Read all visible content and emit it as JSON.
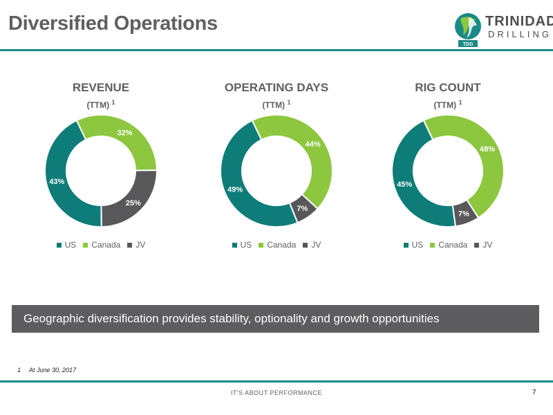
{
  "header": {
    "title": "Diversified Operations"
  },
  "logo": {
    "line1": "TRINIDAD",
    "line2": "DRILLING",
    "badge": "TDG"
  },
  "colors": {
    "US": "#0e7c78",
    "Canada": "#8dc63f",
    "JV": "#58585a",
    "accent": "#1a8a86"
  },
  "chart_data": [
    {
      "type": "pie",
      "title": "REVENUE",
      "subtitle": "(TTM)",
      "footnote_ref": "1",
      "labels": [
        "US",
        "Canada",
        "JV"
      ],
      "values": [
        43,
        32,
        25
      ],
      "value_labels": [
        "43%",
        "32%",
        "25%"
      ],
      "legend": "bottom"
    },
    {
      "type": "pie",
      "title": "OPERATING DAYS",
      "subtitle": "(TTM)",
      "footnote_ref": "1",
      "labels": [
        "US",
        "Canada",
        "JV"
      ],
      "values": [
        49,
        44,
        7
      ],
      "value_labels": [
        "49%",
        "44%",
        "7%"
      ],
      "legend": "bottom"
    },
    {
      "type": "pie",
      "title": "RIG COUNT",
      "subtitle": "(TTM)",
      "footnote_ref": "1",
      "labels": [
        "US",
        "Canada",
        "JV"
      ],
      "values": [
        45,
        48,
        7
      ],
      "value_labels": [
        "45%",
        "48%",
        "7%"
      ],
      "legend": "bottom"
    }
  ],
  "banner": {
    "text": "Geographic diversification provides stability, optionality and growth opportunities"
  },
  "footnote": {
    "number": "1",
    "text": "At June 30, 2017"
  },
  "footer": {
    "tagline": "IT'S ABOUT PERFORMANCE",
    "page_number": "7"
  }
}
